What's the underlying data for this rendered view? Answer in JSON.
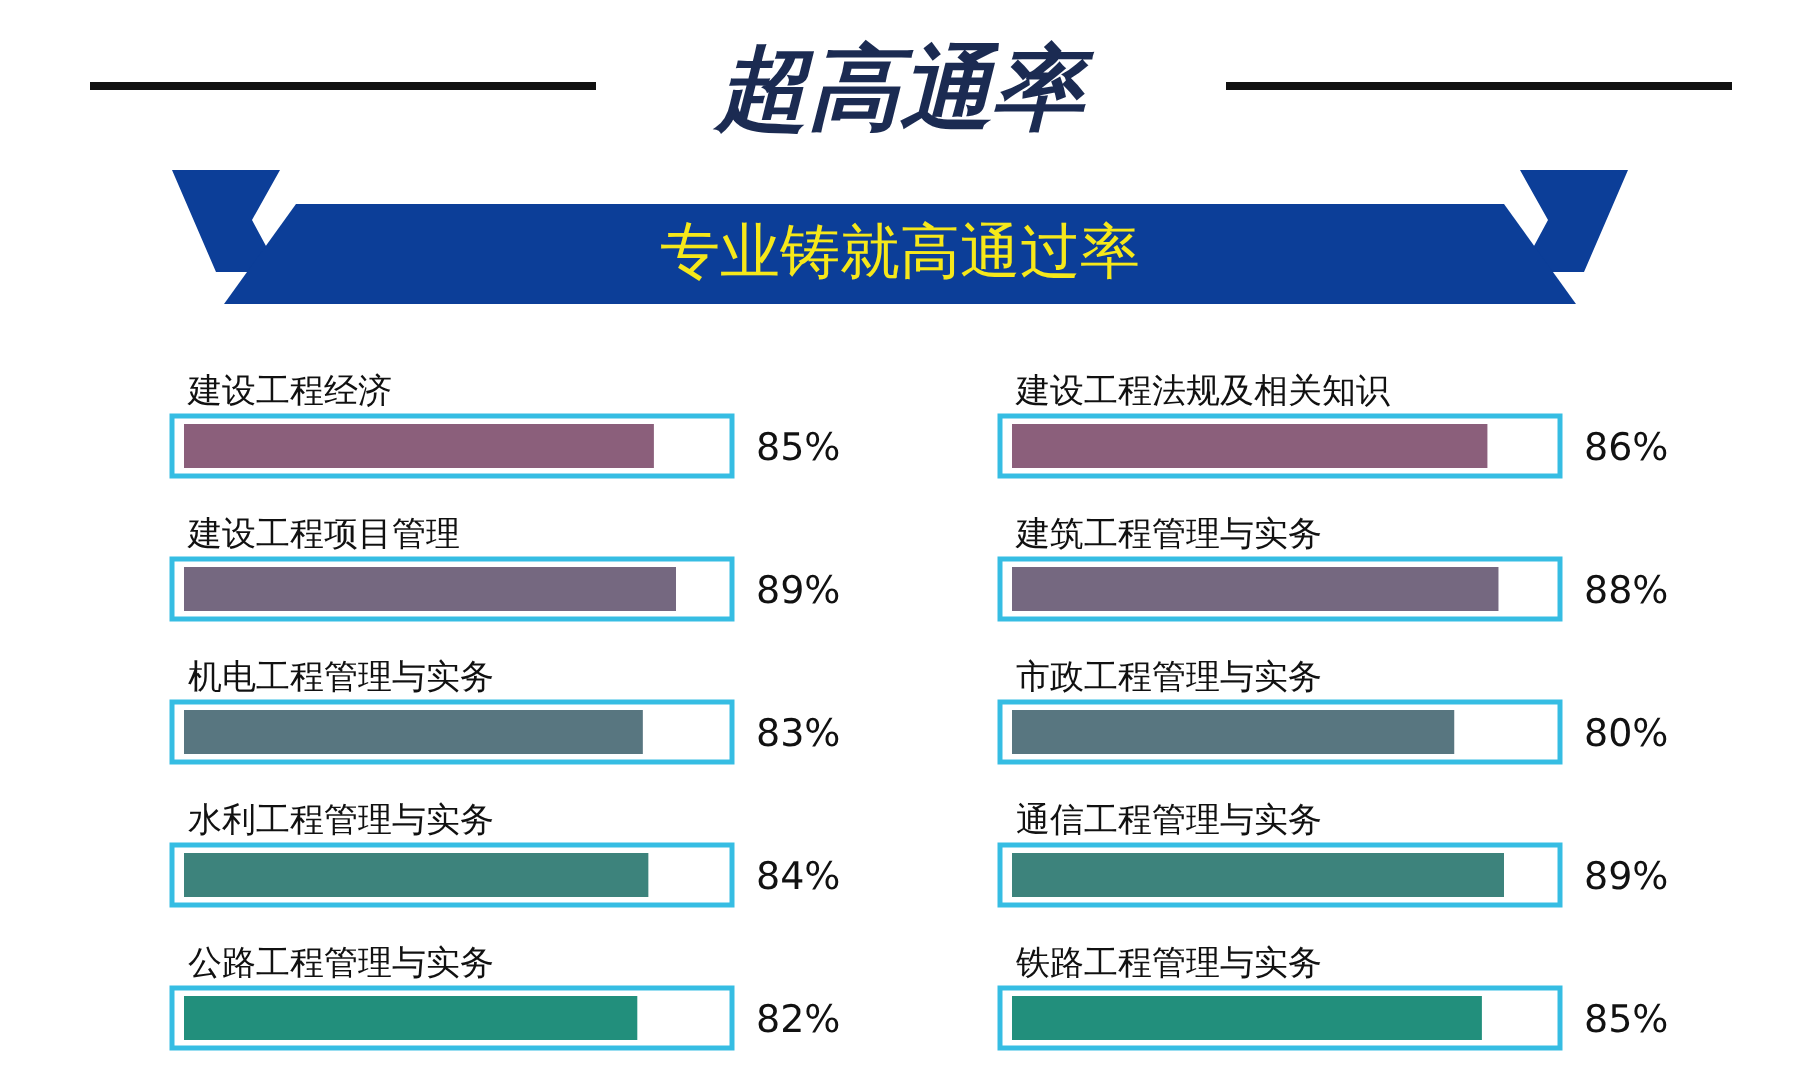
{
  "chart_data": [
    {
      "type": "bar",
      "orientation": "horizontal",
      "title": "超高通率",
      "subtitle": "专业铸就高通过率",
      "categories": [
        "建设工程经济",
        "建设工程项目管理",
        "机电工程管理与实务",
        "水利工程管理与实务",
        "公路工程管理与实务"
      ],
      "values": [
        85,
        89,
        83,
        84,
        82
      ],
      "colors": [
        "#8b5f7b",
        "#756880",
        "#587680",
        "#3d837c",
        "#228f7c"
      ],
      "value_labels": [
        "85%",
        "89%",
        "83%",
        "84%",
        "82%"
      ],
      "tick_labels": false
    },
    {
      "type": "bar",
      "orientation": "horizontal",
      "categories": [
        "建设工程法规及相关知识",
        "建筑工程管理与实务",
        "市政工程管理与实务",
        "通信工程管理与实务",
        "铁路工程管理与实务"
      ],
      "values": [
        86,
        88,
        80,
        89,
        85
      ],
      "colors": [
        "#8b5f7b",
        "#756880",
        "#587680",
        "#3d837c",
        "#228f7c"
      ],
      "value_labels": [
        "86%",
        "88%",
        "80%",
        "89%",
        "85%"
      ],
      "tick_labels": false
    }
  ]
}
